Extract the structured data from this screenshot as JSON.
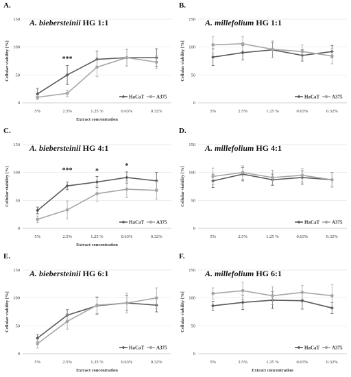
{
  "chart_data": [
    {
      "type": "line",
      "letter": "A.",
      "title_species": "A. biebersteinii",
      "title_rest": " HG 1:1",
      "categories": [
        "5%",
        "2.5%",
        "1.25 %",
        "0.63%",
        "0.32%"
      ],
      "ylabel": "Cellular viability [%]",
      "xlabel": "Extract concentration",
      "ylim": [
        0,
        150
      ],
      "yticks": [
        0,
        50,
        100,
        150
      ],
      "legend_position": "bottom-right",
      "series": [
        {
          "name": "HaCaT",
          "color": "#595959",
          "marker": "diamond",
          "values": [
            16,
            50,
            78,
            81,
            81
          ],
          "errors": [
            10,
            17,
            15,
            15,
            16
          ]
        },
        {
          "name": "A375",
          "color": "#a6a6a6",
          "marker": "circle",
          "values": [
            10,
            17,
            64,
            81,
            73
          ],
          "errors": [
            4,
            6,
            17,
            15,
            12
          ]
        }
      ],
      "annotations": [
        {
          "text": "***",
          "category_index": 1,
          "value": 75
        }
      ]
    },
    {
      "type": "line",
      "letter": "B.",
      "title_species": "A. millefolium",
      "title_rest": " HG 1:1",
      "categories": [
        "5%",
        "2.5%",
        "1.25 %",
        "0.63%",
        "0.32%"
      ],
      "ylabel": "Cellular viability [%]",
      "xlabel": "",
      "ylim": [
        0,
        150
      ],
      "yticks": [
        0,
        50,
        100,
        150
      ],
      "legend_position": "bottom-right",
      "series": [
        {
          "name": "HaCaT",
          "color": "#595959",
          "marker": "diamond",
          "values": [
            82,
            90,
            95,
            85,
            92
          ],
          "errors": [
            15,
            13,
            14,
            10,
            11
          ]
        },
        {
          "name": "A375",
          "color": "#a6a6a6",
          "marker": "circle",
          "values": [
            104,
            106,
            96,
            92,
            84
          ],
          "errors": [
            15,
            13,
            15,
            12,
            14
          ]
        }
      ],
      "annotations": []
    },
    {
      "type": "line",
      "letter": "C.",
      "title_species": "A. biebersteinii",
      "title_rest": " HG 4:1",
      "categories": [
        "5%",
        "2.5%",
        "1.25 %",
        "0.63%",
        "0.32%"
      ],
      "ylabel": "Cellular viability [%]",
      "xlabel": "Extract concentration",
      "ylim": [
        0,
        150
      ],
      "yticks": [
        0,
        50,
        100,
        150
      ],
      "legend_position": "bottom-right",
      "series": [
        {
          "name": "HaCaT",
          "color": "#595959",
          "marker": "diamond",
          "values": [
            32,
            76,
            83,
            91,
            85
          ],
          "errors": [
            6,
            7,
            10,
            10,
            15
          ]
        },
        {
          "name": "A375",
          "color": "#a6a6a6",
          "marker": "circle",
          "values": [
            16,
            33,
            62,
            70,
            68
          ],
          "errors": [
            6,
            16,
            14,
            15,
            16
          ]
        }
      ],
      "annotations": [
        {
          "text": "***",
          "category_index": 1,
          "value": 100
        },
        {
          "text": "*",
          "category_index": 2,
          "value": 99
        },
        {
          "text": "*",
          "category_index": 3,
          "value": 108
        }
      ]
    },
    {
      "type": "line",
      "letter": "D.",
      "title_species": "A. millefolium",
      "title_rest": " HG 4:1",
      "categories": [
        "5%",
        "2.5%",
        "1.25 %",
        "0.63%",
        "0.32%"
      ],
      "ylabel": "Cellular viability [%]",
      "xlabel": "",
      "ylim": [
        0,
        150
      ],
      "yticks": [
        0,
        50,
        100,
        150
      ],
      "legend_position": "bottom-right",
      "series": [
        {
          "name": "HaCaT",
          "color": "#595959",
          "marker": "diamond",
          "values": [
            85,
            97,
            87,
            91,
            87
          ],
          "errors": [
            12,
            12,
            10,
            12,
            13
          ]
        },
        {
          "name": "A375",
          "color": "#a6a6a6",
          "marker": "circle",
          "values": [
            93,
            100,
            91,
            95,
            87
          ],
          "errors": [
            15,
            12,
            13,
            12,
            13
          ]
        }
      ],
      "annotations": []
    },
    {
      "type": "line",
      "letter": "E.",
      "title_species": "A. biebersteinii",
      "title_rest": " HG 6:1",
      "categories": [
        "5%",
        "2.5%",
        "1.25 %",
        "0.63%",
        "0.32%"
      ],
      "ylabel": "Cellular viability [%]",
      "xlabel": "Extract concentration",
      "ylim": [
        0,
        150
      ],
      "yticks": [
        0,
        50,
        100,
        150
      ],
      "legend_position": "bottom-right",
      "series": [
        {
          "name": "HaCaT",
          "color": "#595959",
          "marker": "diamond",
          "values": [
            28,
            69,
            86,
            91,
            87
          ],
          "errors": [
            6,
            10,
            15,
            13,
            12
          ]
        },
        {
          "name": "A375",
          "color": "#a6a6a6",
          "marker": "circle",
          "values": [
            18,
            58,
            87,
            91,
            100
          ],
          "errors": [
            8,
            14,
            15,
            18,
            18
          ]
        }
      ],
      "annotations": []
    },
    {
      "type": "line",
      "letter": "F.",
      "title_species": "A. millefolium",
      "title_rest": " HG 6:1",
      "categories": [
        "5%",
        "2.5%",
        "1.25 %",
        "0.63%",
        "0.32%"
      ],
      "ylabel": "Cellular viability [%]",
      "xlabel": "Extract concentration",
      "ylim": [
        0,
        150
      ],
      "yticks": [
        0,
        50,
        100,
        150
      ],
      "legend_position": "bottom-right",
      "series": [
        {
          "name": "HaCaT",
          "color": "#595959",
          "marker": "diamond",
          "values": [
            86,
            92,
            96,
            95,
            82
          ],
          "errors": [
            8,
            13,
            15,
            15,
            10
          ]
        },
        {
          "name": "A375",
          "color": "#a6a6a6",
          "marker": "circle",
          "values": [
            108,
            113,
            104,
            110,
            104
          ],
          "errors": [
            10,
            15,
            16,
            12,
            20
          ]
        }
      ],
      "annotations": []
    }
  ]
}
